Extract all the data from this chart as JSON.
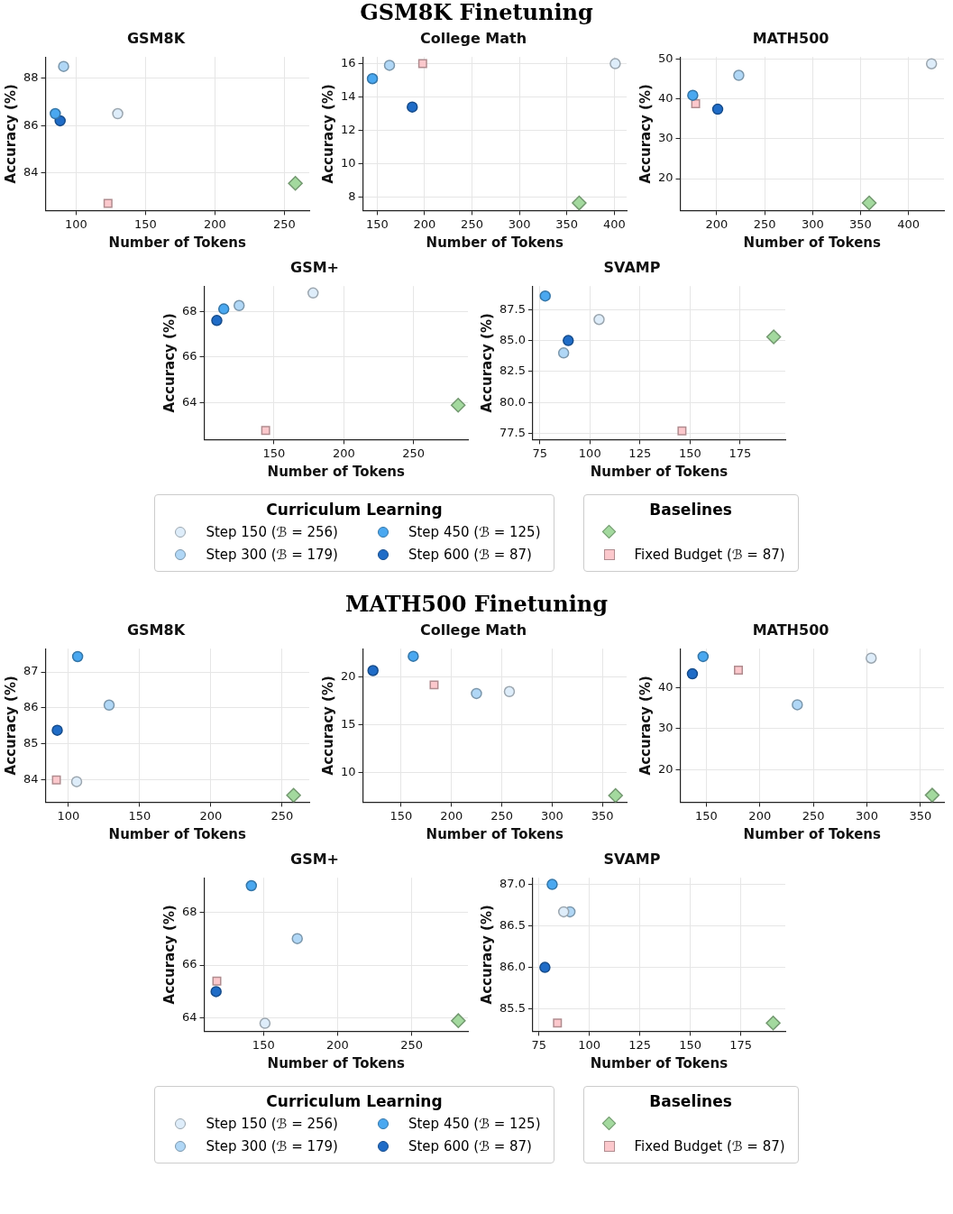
{
  "chart_data": [
    {
      "type": "other",
      "title": "GSM8K Finetuning"
    },
    {
      "type": "scatter",
      "title": "GSM8K",
      "xlabel": "Number of Tokens",
      "ylabel": "Accuracy (%)",
      "xlim": [
        78,
        268
      ],
      "ylim": [
        82.4,
        88.9
      ],
      "xticks": [
        100,
        150,
        200,
        250
      ],
      "yticks": [
        84,
        86,
        88
      ],
      "grid": true,
      "legend": "bottom",
      "legend_title": "Curriculum Learning",
      "annotations": [
        "Baselines"
      ],
      "series": [
        {
          "name": "Step 150 (ℬ = 256)",
          "color": "#deedfa",
          "marker": "circle",
          "x": [
            130
          ],
          "values": [
            86.5
          ]
        },
        {
          "name": "Step 300 (ℬ = 179)",
          "color": "#b0d7f6",
          "marker": "circle",
          "x": [
            91
          ],
          "values": [
            88.5
          ]
        },
        {
          "name": "Step 450 (ℬ = 125)",
          "color": "#4aa8f0",
          "marker": "circle",
          "x": [
            85
          ],
          "values": [
            86.5
          ]
        },
        {
          "name": "Step 600 (ℬ = 87)",
          "color": "#1f6cc7",
          "marker": "circle",
          "x": [
            88.5
          ],
          "values": [
            86.2
          ]
        },
        {
          "color": "#a3d99e",
          "marker": "diamond",
          "x": [
            258
          ],
          "values": [
            83.55
          ]
        },
        {
          "name": "Fixed Budget (ℬ = 87)",
          "color": "#fcc8cc",
          "marker": "square",
          "x": [
            123
          ],
          "values": [
            82.7
          ]
        }
      ]
    },
    {
      "type": "scatter",
      "title": "College Math",
      "xlabel": "Number of Tokens",
      "ylabel": "Accuracy (%)",
      "xlim": [
        135,
        413
      ],
      "ylim": [
        7.2,
        16.4
      ],
      "xticks": [
        150,
        200,
        250,
        300,
        350,
        400
      ],
      "yticks": [
        8,
        10,
        12,
        14,
        16
      ],
      "grid": true,
      "series": [
        {
          "color": "#deedfa",
          "marker": "circle",
          "x": [
            401
          ],
          "values": [
            16.0
          ]
        },
        {
          "color": "#b0d7f6",
          "marker": "circle",
          "x": [
            163
          ],
          "values": [
            15.9
          ]
        },
        {
          "color": "#4aa8f0",
          "marker": "circle",
          "x": [
            145
          ],
          "values": [
            15.1
          ]
        },
        {
          "color": "#1f6cc7",
          "marker": "circle",
          "x": [
            187
          ],
          "values": [
            13.4
          ]
        },
        {
          "color": "#a3d99e",
          "marker": "diamond",
          "x": [
            363
          ],
          "values": [
            7.65
          ]
        },
        {
          "color": "#fcc8cc",
          "marker": "square",
          "x": [
            198
          ],
          "values": [
            16.0
          ]
        }
      ]
    },
    {
      "type": "scatter",
      "title": "MATH500",
      "xlabel": "Number of Tokens",
      "ylabel": "Accuracy (%)",
      "xlim": [
        162,
        437
      ],
      "ylim": [
        12,
        50.5
      ],
      "xticks": [
        200,
        250,
        300,
        350,
        400
      ],
      "yticks": [
        20,
        30,
        40,
        50
      ],
      "grid": true,
      "series": [
        {
          "color": "#deedfa",
          "marker": "circle",
          "x": [
            424
          ],
          "values": [
            48.8
          ]
        },
        {
          "color": "#b0d7f6",
          "marker": "circle",
          "x": [
            223
          ],
          "values": [
            45.9
          ]
        },
        {
          "color": "#4aa8f0",
          "marker": "circle",
          "x": [
            175
          ],
          "values": [
            40.9
          ]
        },
        {
          "color": "#1f6cc7",
          "marker": "circle",
          "x": [
            201
          ],
          "values": [
            37.4
          ]
        },
        {
          "color": "#a3d99e",
          "marker": "diamond",
          "x": [
            359
          ],
          "values": [
            13.9
          ]
        },
        {
          "color": "#fcc8cc",
          "marker": "square",
          "x": [
            178
          ],
          "values": [
            38.8
          ]
        }
      ]
    },
    {
      "type": "scatter",
      "title": "GSM+",
      "xlabel": "Number of Tokens",
      "ylabel": "Accuracy (%)",
      "xlim": [
        100,
        289
      ],
      "ylim": [
        62.4,
        69.1
      ],
      "xticks": [
        150,
        200,
        250
      ],
      "yticks": [
        64,
        66,
        68
      ],
      "grid": true,
      "series": [
        {
          "color": "#deedfa",
          "marker": "circle",
          "x": [
            178
          ],
          "values": [
            68.8
          ]
        },
        {
          "color": "#b0d7f6",
          "marker": "circle",
          "x": [
            125
          ],
          "values": [
            68.25
          ]
        },
        {
          "color": "#4aa8f0",
          "marker": "circle",
          "x": [
            114
          ],
          "values": [
            68.1
          ]
        },
        {
          "color": "#1f6cc7",
          "marker": "circle",
          "x": [
            109
          ],
          "values": [
            67.6
          ]
        },
        {
          "color": "#a3d99e",
          "marker": "diamond",
          "x": [
            282
          ],
          "values": [
            63.9
          ]
        },
        {
          "color": "#fcc8cc",
          "marker": "square",
          "x": [
            144
          ],
          "values": [
            62.8
          ]
        }
      ]
    },
    {
      "type": "scatter",
      "title": "SVAMP",
      "xlabel": "Number of Tokens",
      "ylabel": "Accuracy (%)",
      "xlim": [
        71.5,
        197.6
      ],
      "ylim": [
        77.0,
        89.4
      ],
      "xticks": [
        75,
        100,
        125,
        150,
        175
      ],
      "yticks": [
        {
          "value": 77.5,
          "label": "77.5"
        },
        {
          "value": 80,
          "label": "80.0"
        },
        {
          "value": 82.5,
          "label": "82.5"
        },
        {
          "value": 85,
          "label": "85.0"
        },
        {
          "value": 87.5,
          "label": "87.5"
        }
      ],
      "grid": true,
      "series": [
        {
          "color": "#deedfa",
          "marker": "circle",
          "x": [
            104.6
          ],
          "values": [
            86.7
          ]
        },
        {
          "color": "#b0d7f6",
          "marker": "circle",
          "x": [
            86.9
          ],
          "values": [
            84.0
          ]
        },
        {
          "color": "#4aa8f0",
          "marker": "circle",
          "x": [
            77.7
          ],
          "values": [
            88.6
          ]
        },
        {
          "color": "#1f6cc7",
          "marker": "circle",
          "x": [
            89.2
          ],
          "values": [
            85.0
          ]
        },
        {
          "color": "#a3d99e",
          "marker": "diamond",
          "x": [
            191.8
          ],
          "values": [
            85.3
          ]
        },
        {
          "color": "#fcc8cc",
          "marker": "square",
          "x": [
            146
          ],
          "values": [
            77.7
          ]
        }
      ]
    },
    {
      "type": "other",
      "title": "MATH500 Finetuning"
    },
    {
      "type": "scatter",
      "title": "GSM8K",
      "xlabel": "Number of Tokens",
      "ylabel": "Accuracy (%)",
      "xlim": [
        84,
        269
      ],
      "ylim": [
        83.38,
        87.65
      ],
      "xticks": [
        100,
        150,
        200,
        250
      ],
      "yticks": [
        84,
        85,
        86,
        87
      ],
      "grid": true,
      "legend": "bottom",
      "legend_title": "Curriculum Learning",
      "annotations": [
        "Baselines"
      ],
      "series": [
        {
          "name": "Step 150 (ℬ = 256)",
          "color": "#deedfa",
          "marker": "circle",
          "x": [
            105.8
          ],
          "values": [
            83.95
          ]
        },
        {
          "name": "Step 300 (ℬ = 179)",
          "color": "#b0d7f6",
          "marker": "circle",
          "x": [
            128.6
          ],
          "values": [
            86.08
          ]
        },
        {
          "name": "Step 450 (ℬ = 125)",
          "color": "#4aa8f0",
          "marker": "circle",
          "x": [
            106.5
          ],
          "values": [
            87.43
          ]
        },
        {
          "name": "Step 600 (ℬ = 87)",
          "color": "#1f6cc7",
          "marker": "circle",
          "x": [
            92.2
          ],
          "values": [
            85.38
          ]
        },
        {
          "color": "#a3d99e",
          "marker": "diamond",
          "x": [
            258
          ],
          "values": [
            83.57
          ]
        },
        {
          "name": "Fixed Budget (ℬ = 87)",
          "color": "#fcc8cc",
          "marker": "square",
          "x": [
            91.6
          ],
          "values": [
            84.0
          ]
        }
      ]
    },
    {
      "type": "scatter",
      "title": "College Math",
      "xlabel": "Number of Tokens",
      "ylabel": "Accuracy (%)",
      "xlim": [
        112,
        374
      ],
      "ylim": [
        6.9,
        23
      ],
      "xticks": [
        150,
        200,
        250,
        300,
        350
      ],
      "yticks": [
        10,
        15,
        20
      ],
      "grid": true,
      "series": [
        {
          "color": "#deedfa",
          "marker": "circle",
          "x": [
            257.5
          ],
          "values": [
            18.5
          ]
        },
        {
          "color": "#b0d7f6",
          "marker": "circle",
          "x": [
            224.8
          ],
          "values": [
            18.3
          ]
        },
        {
          "color": "#4aa8f0",
          "marker": "circle",
          "x": [
            162
          ],
          "values": [
            22.2
          ]
        },
        {
          "color": "#1f6cc7",
          "marker": "circle",
          "x": [
            122
          ],
          "values": [
            20.7
          ]
        },
        {
          "color": "#a3d99e",
          "marker": "diamond",
          "x": [
            363
          ],
          "values": [
            7.6
          ]
        },
        {
          "color": "#fcc8cc",
          "marker": "square",
          "x": [
            182.7
          ],
          "values": [
            19.2
          ]
        }
      ]
    },
    {
      "type": "scatter",
      "title": "MATH500",
      "xlabel": "Number of Tokens",
      "ylabel": "Accuracy (%)",
      "xlim": [
        125.7,
        372
      ],
      "ylim": [
        12.2,
        49.4
      ],
      "xticks": [
        150,
        200,
        250,
        300,
        350
      ],
      "yticks": [
        20,
        30,
        40
      ],
      "grid": true,
      "series": [
        {
          "color": "#deedfa",
          "marker": "circle",
          "x": [
            304
          ],
          "values": [
            47.1
          ]
        },
        {
          "color": "#b0d7f6",
          "marker": "circle",
          "x": [
            235
          ],
          "values": [
            35.8
          ]
        },
        {
          "color": "#4aa8f0",
          "marker": "circle",
          "x": [
            147
          ],
          "values": [
            47.5
          ]
        },
        {
          "color": "#1f6cc7",
          "marker": "circle",
          "x": [
            137
          ],
          "values": [
            43.3
          ]
        },
        {
          "color": "#a3d99e",
          "marker": "diamond",
          "x": [
            361
          ],
          "values": [
            13.9
          ]
        },
        {
          "color": "#fcc8cc",
          "marker": "square",
          "x": [
            180
          ],
          "values": [
            44.2
          ]
        }
      ]
    },
    {
      "type": "scatter",
      "title": "GSM+",
      "xlabel": "Number of Tokens",
      "ylabel": "Accuracy (%)",
      "xlim": [
        110,
        288
      ],
      "ylim": [
        63.5,
        69.3
      ],
      "xticks": [
        150,
        200,
        250
      ],
      "yticks": [
        64,
        66,
        68
      ],
      "grid": true,
      "series": [
        {
          "color": "#deedfa",
          "marker": "circle",
          "x": [
            151
          ],
          "values": [
            63.8
          ]
        },
        {
          "color": "#b0d7f6",
          "marker": "circle",
          "x": [
            172.8
          ],
          "values": [
            67.0
          ]
        },
        {
          "color": "#4aa8f0",
          "marker": "circle",
          "x": [
            141.8
          ],
          "values": [
            69.0
          ]
        },
        {
          "color": "#1f6cc7",
          "marker": "circle",
          "x": [
            118
          ],
          "values": [
            65.0
          ]
        },
        {
          "color": "#a3d99e",
          "marker": "diamond",
          "x": [
            281.5
          ],
          "values": [
            63.9
          ]
        },
        {
          "color": "#fcc8cc",
          "marker": "square",
          "x": [
            118.5
          ],
          "values": [
            65.4
          ]
        }
      ]
    },
    {
      "type": "scatter",
      "title": "SVAMP",
      "xlabel": "Number of Tokens",
      "ylabel": "Accuracy (%)",
      "xlim": [
        72,
        197
      ],
      "ylim": [
        85.23,
        87.08
      ],
      "xticks": [
        75,
        100,
        125,
        150,
        175
      ],
      "yticks": [
        {
          "value": 85.5,
          "label": "85.5"
        },
        {
          "value": 86,
          "label": "86.0"
        },
        {
          "value": 86.5,
          "label": "86.5"
        },
        {
          "value": 87,
          "label": "87.0"
        }
      ],
      "grid": true,
      "series": [
        {
          "color": "#deedfa",
          "marker": "circle",
          "x": [
            87.3
          ],
          "values": [
            86.67
          ]
        },
        {
          "color": "#b0d7f6",
          "marker": "circle",
          "x": [
            90.4
          ],
          "values": [
            86.67
          ]
        },
        {
          "color": "#4aa8f0",
          "marker": "circle",
          "x": [
            81.6
          ],
          "values": [
            87.0
          ]
        },
        {
          "color": "#1f6cc7",
          "marker": "circle",
          "x": [
            78
          ],
          "values": [
            86.0
          ]
        },
        {
          "color": "#a3d99e",
          "marker": "diamond",
          "x": [
            191
          ],
          "values": [
            85.33
          ]
        },
        {
          "color": "#fcc8cc",
          "marker": "square",
          "x": [
            84.2
          ],
          "values": [
            85.33
          ]
        }
      ]
    }
  ]
}
